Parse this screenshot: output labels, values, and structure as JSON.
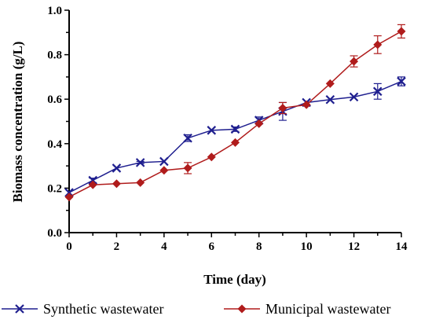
{
  "chart_data": {
    "type": "line",
    "xlabel": "Time (day)",
    "ylabel": "Biomass concentration (g/L)",
    "xlim": [
      0,
      14
    ],
    "ylim": [
      0,
      1.0
    ],
    "xticks": [
      "0",
      "2",
      "4",
      "6",
      "8",
      "10",
      "12",
      "14"
    ],
    "yticks": [
      "0.0",
      "0.2",
      "0.4",
      "0.6",
      "0.8",
      "1.0"
    ],
    "grid": false,
    "legend_position": "bottom",
    "x": [
      0,
      1,
      2,
      3,
      4,
      5,
      6,
      7,
      8,
      9,
      10,
      11,
      12,
      13,
      14
    ],
    "series": [
      {
        "name": "Synthetic wastewater",
        "color": "#1f1f8f",
        "marker": "x",
        "values": [
          0.18,
          0.235,
          0.29,
          0.315,
          0.32,
          0.425,
          0.46,
          0.465,
          0.505,
          0.545,
          0.585,
          0.598,
          0.61,
          0.635,
          0.68
        ],
        "errors": [
          0,
          0.01,
          0,
          0.005,
          0,
          0.015,
          0,
          0.01,
          0.015,
          0.04,
          0,
          0,
          0,
          0.035,
          0.02
        ]
      },
      {
        "name": "Municipal wastewater",
        "color": "#b01c1c",
        "marker": "diamond",
        "values": [
          0.16,
          0.215,
          0.22,
          0.225,
          0.28,
          0.29,
          0.34,
          0.405,
          0.49,
          0.56,
          0.575,
          0.67,
          0.77,
          0.845,
          0.905
        ],
        "errors": [
          0,
          0,
          0,
          0,
          0,
          0.025,
          0,
          0,
          0,
          0.025,
          0,
          0,
          0.025,
          0.04,
          0.03
        ]
      }
    ]
  }
}
